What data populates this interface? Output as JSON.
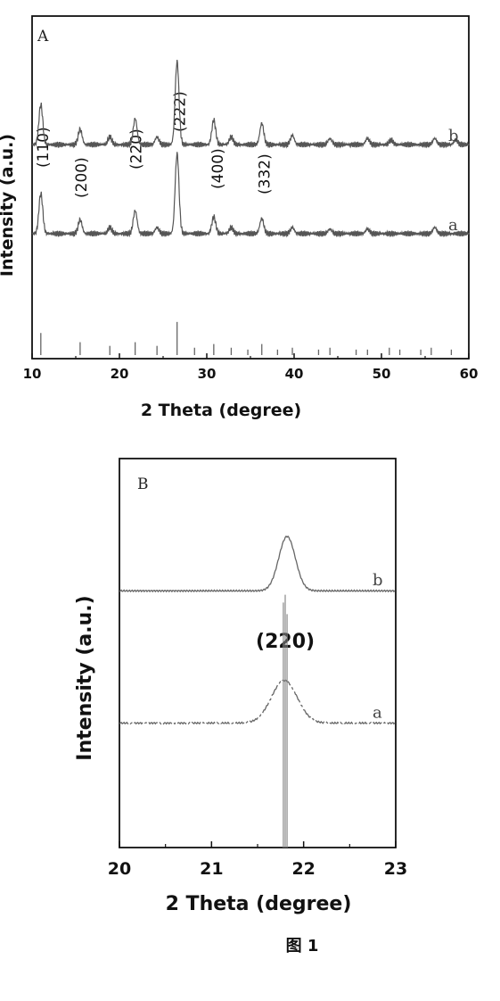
{
  "figure_caption": "图 1",
  "chart_data": [
    {
      "type": "line",
      "panel_label": "A",
      "xlabel": "2 Theta (degree)",
      "ylabel": "Intensity (a.u.)",
      "xlim": [
        10,
        60
      ],
      "xticks": [
        "10",
        "20",
        "30",
        "40",
        "50",
        "60"
      ],
      "grid": false,
      "peak_labels": [
        {
          "x": 11.2,
          "text": "(110)"
        },
        {
          "x": 15.6,
          "text": "(200)"
        },
        {
          "x": 21.9,
          "text": "(220)"
        },
        {
          "x": 26.9,
          "text": "(222)"
        },
        {
          "x": 31.2,
          "text": "(400)"
        },
        {
          "x": 36.6,
          "text": "(332)"
        }
      ],
      "series": [
        {
          "label": "b",
          "baseline": 0.68,
          "peaks": [
            [
              11.0,
              0.13
            ],
            [
              15.5,
              0.05
            ],
            [
              18.9,
              0.025
            ],
            [
              21.8,
              0.085
            ],
            [
              24.3,
              0.025
            ],
            [
              26.6,
              0.27
            ],
            [
              30.8,
              0.08
            ],
            [
              32.8,
              0.025
            ],
            [
              36.3,
              0.07
            ],
            [
              39.8,
              0.03
            ],
            [
              44.1,
              0.02
            ],
            [
              48.4,
              0.02
            ],
            [
              51.1,
              0.015
            ],
            [
              56.1,
              0.02
            ],
            [
              58.5,
              0.015
            ]
          ]
        },
        {
          "label": "a",
          "baseline": 0.39,
          "peaks": [
            [
              11.0,
              0.13
            ],
            [
              15.5,
              0.045
            ],
            [
              18.9,
              0.02
            ],
            [
              21.8,
              0.075
            ],
            [
              24.3,
              0.02
            ],
            [
              26.6,
              0.26
            ],
            [
              30.8,
              0.055
            ],
            [
              32.8,
              0.02
            ],
            [
              36.3,
              0.05
            ],
            [
              39.8,
              0.02
            ],
            [
              44.1,
              0.015
            ],
            [
              48.4,
              0.015
            ],
            [
              56.1,
              0.02
            ]
          ]
        },
        {
          "label": "",
          "type": "reference-sticks",
          "baseline": 0.0,
          "sticks": [
            [
              11.0,
              0.12
            ],
            [
              15.5,
              0.07
            ],
            [
              18.9,
              0.05
            ],
            [
              21.8,
              0.07
            ],
            [
              24.3,
              0.05
            ],
            [
              26.6,
              0.18
            ],
            [
              28.6,
              0.04
            ],
            [
              30.8,
              0.06
            ],
            [
              32.8,
              0.04
            ],
            [
              34.7,
              0.03
            ],
            [
              36.3,
              0.06
            ],
            [
              38.1,
              0.03
            ],
            [
              39.8,
              0.04
            ],
            [
              42.8,
              0.03
            ],
            [
              44.1,
              0.04
            ],
            [
              47.1,
              0.03
            ],
            [
              48.4,
              0.03
            ],
            [
              50.9,
              0.04
            ],
            [
              52.1,
              0.03
            ],
            [
              54.5,
              0.03
            ],
            [
              55.7,
              0.04
            ],
            [
              58.0,
              0.03
            ]
          ]
        }
      ]
    },
    {
      "type": "line",
      "panel_label": "B",
      "xlabel": "2 Theta (degree)",
      "ylabel": "Intensity (a.u.)",
      "xlim": [
        20,
        23
      ],
      "xticks": [
        "20",
        "21",
        "22",
        "23"
      ],
      "grid": false,
      "peak_labels": [
        {
          "x": 21.82,
          "text": "(220)"
        }
      ],
      "series": [
        {
          "label": "b",
          "baseline": 0.66,
          "peak_center": 21.82,
          "peak_height": 0.14,
          "peak_width": 0.09
        },
        {
          "label": "a",
          "baseline": 0.32,
          "peak_center": 21.79,
          "peak_height": 0.11,
          "peak_width": 0.14
        },
        {
          "label": "",
          "type": "reference-sticks",
          "sticks": [
            [
              21.78,
              0.63
            ],
            [
              21.8,
              0.65
            ],
            [
              21.82,
              0.6
            ]
          ]
        }
      ]
    }
  ]
}
